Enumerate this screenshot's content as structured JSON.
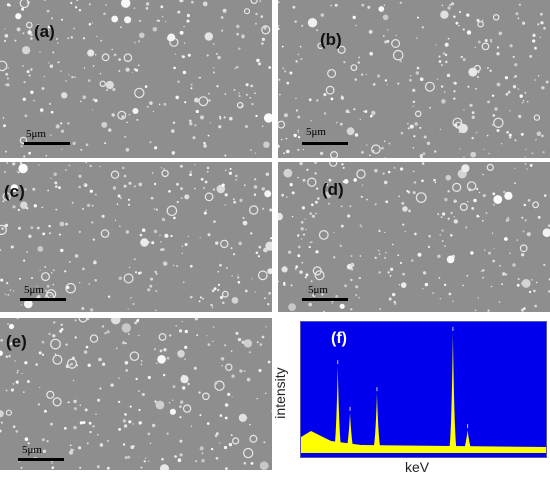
{
  "panels": {
    "a": {
      "label": "(a)",
      "scale": "5μm"
    },
    "b": {
      "label": "(b)",
      "scale": "5μm"
    },
    "c": {
      "label": "(c)",
      "scale": "5μm"
    },
    "d": {
      "label": "(d)",
      "scale": "5μm"
    },
    "e": {
      "label": "(e)",
      "scale": "5μm"
    },
    "f": {
      "label": "(f)"
    }
  },
  "eds": {
    "ylabel": "intensity",
    "xlabel": "keV",
    "background_color": "#0000ee",
    "trace_color": "#ffff00"
  },
  "chart_data": {
    "type": "line",
    "title": "",
    "xlabel": "keV",
    "ylabel": "intensity",
    "peaks": [
      {
        "x": 0.15,
        "y": 0.69
      },
      {
        "x": 0.2,
        "y": 0.31
      },
      {
        "x": 0.31,
        "y": 0.47
      },
      {
        "x": 0.62,
        "y": 0.96
      },
      {
        "x": 0.68,
        "y": 0.17
      }
    ]
  }
}
